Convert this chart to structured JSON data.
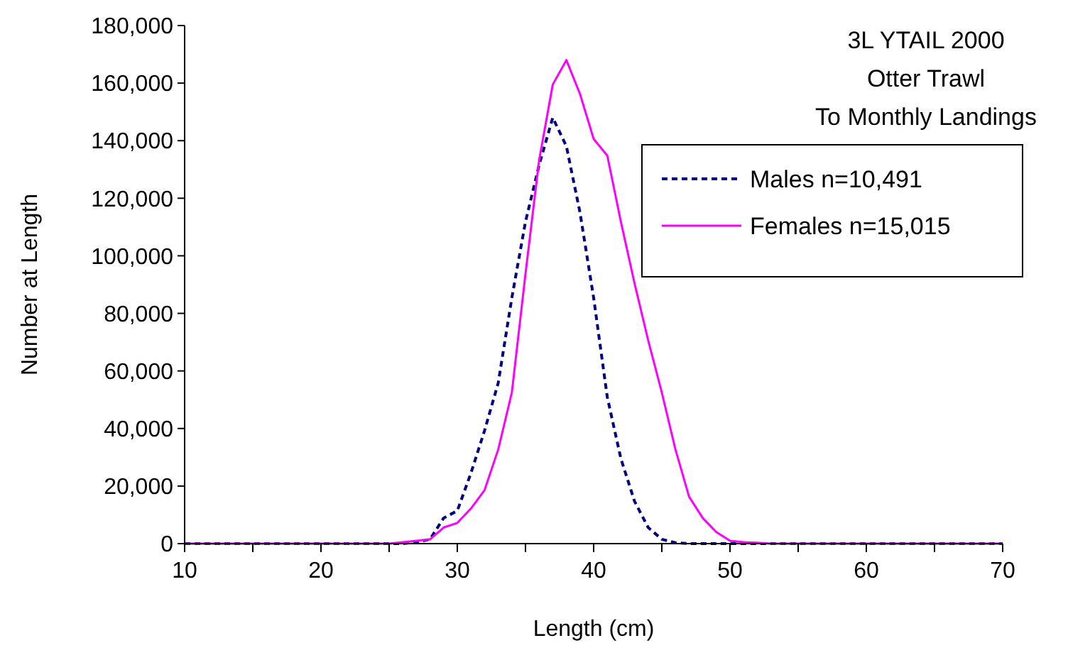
{
  "chart_data": {
    "type": "line",
    "title": "3L YTAIL 2000\nOtter Trawl\nTo Monthly Landings",
    "xlabel": "Length (cm)",
    "ylabel": "Number at Length",
    "xlim": [
      10,
      70
    ],
    "xticks": [
      10,
      {
        "value": 15,
        "label": null
      },
      20,
      {
        "value": 25,
        "label": null
      },
      30,
      {
        "value": 35,
        "label": null
      },
      40,
      {
        "value": 45,
        "label": null
      },
      50,
      {
        "value": 55,
        "label": null
      },
      60,
      {
        "value": 65,
        "label": null
      },
      70
    ],
    "ylim": [
      0,
      180000
    ],
    "yticks": [
      {
        "value": 0,
        "label": "0"
      },
      {
        "value": 20000,
        "label": "20,000"
      },
      {
        "value": 40000,
        "label": "40,000"
      },
      {
        "value": 60000,
        "label": "60,000"
      },
      {
        "value": 80000,
        "label": "80,000"
      },
      {
        "value": 100000,
        "label": "100,000"
      },
      {
        "value": 120000,
        "label": "120,000"
      },
      {
        "value": 140000,
        "label": "140,000"
      },
      {
        "value": 160000,
        "label": "160,000"
      },
      {
        "value": 180000,
        "label": "180,000"
      }
    ],
    "grid": false,
    "legend": "top right",
    "series": [
      {
        "name": "Males n=10,491",
        "color": "#000080",
        "line_style": "dashed",
        "x": [
          10,
          25,
          26,
          27,
          28,
          29,
          30,
          31,
          32,
          33,
          34,
          35,
          36,
          37,
          38,
          39,
          40,
          41,
          42,
          43,
          44,
          45,
          46,
          47,
          70
        ],
        "values": [
          0,
          0,
          0,
          500,
          1500,
          8900,
          11400,
          24500,
          39300,
          55800,
          85400,
          111800,
          131500,
          148000,
          138100,
          115000,
          85400,
          50900,
          29500,
          14700,
          5600,
          1500,
          300,
          0,
          0
        ]
      },
      {
        "name": "Females n=15,015",
        "color": "#ff00ff",
        "line_style": "solid",
        "x": [
          10,
          25,
          26,
          27,
          28,
          29,
          30,
          31,
          32,
          33,
          34,
          35,
          36,
          37,
          38,
          39,
          40,
          41,
          42,
          43,
          44,
          45,
          46,
          47,
          48,
          49,
          50,
          51,
          52,
          53,
          70
        ],
        "values": [
          0,
          0,
          500,
          1000,
          1500,
          5600,
          7200,
          12200,
          18600,
          32700,
          52500,
          93700,
          133200,
          159500,
          168000,
          156200,
          140600,
          134800,
          111800,
          90400,
          70600,
          52500,
          32700,
          16300,
          8900,
          4000,
          1000,
          500,
          300,
          0,
          0
        ]
      }
    ]
  }
}
